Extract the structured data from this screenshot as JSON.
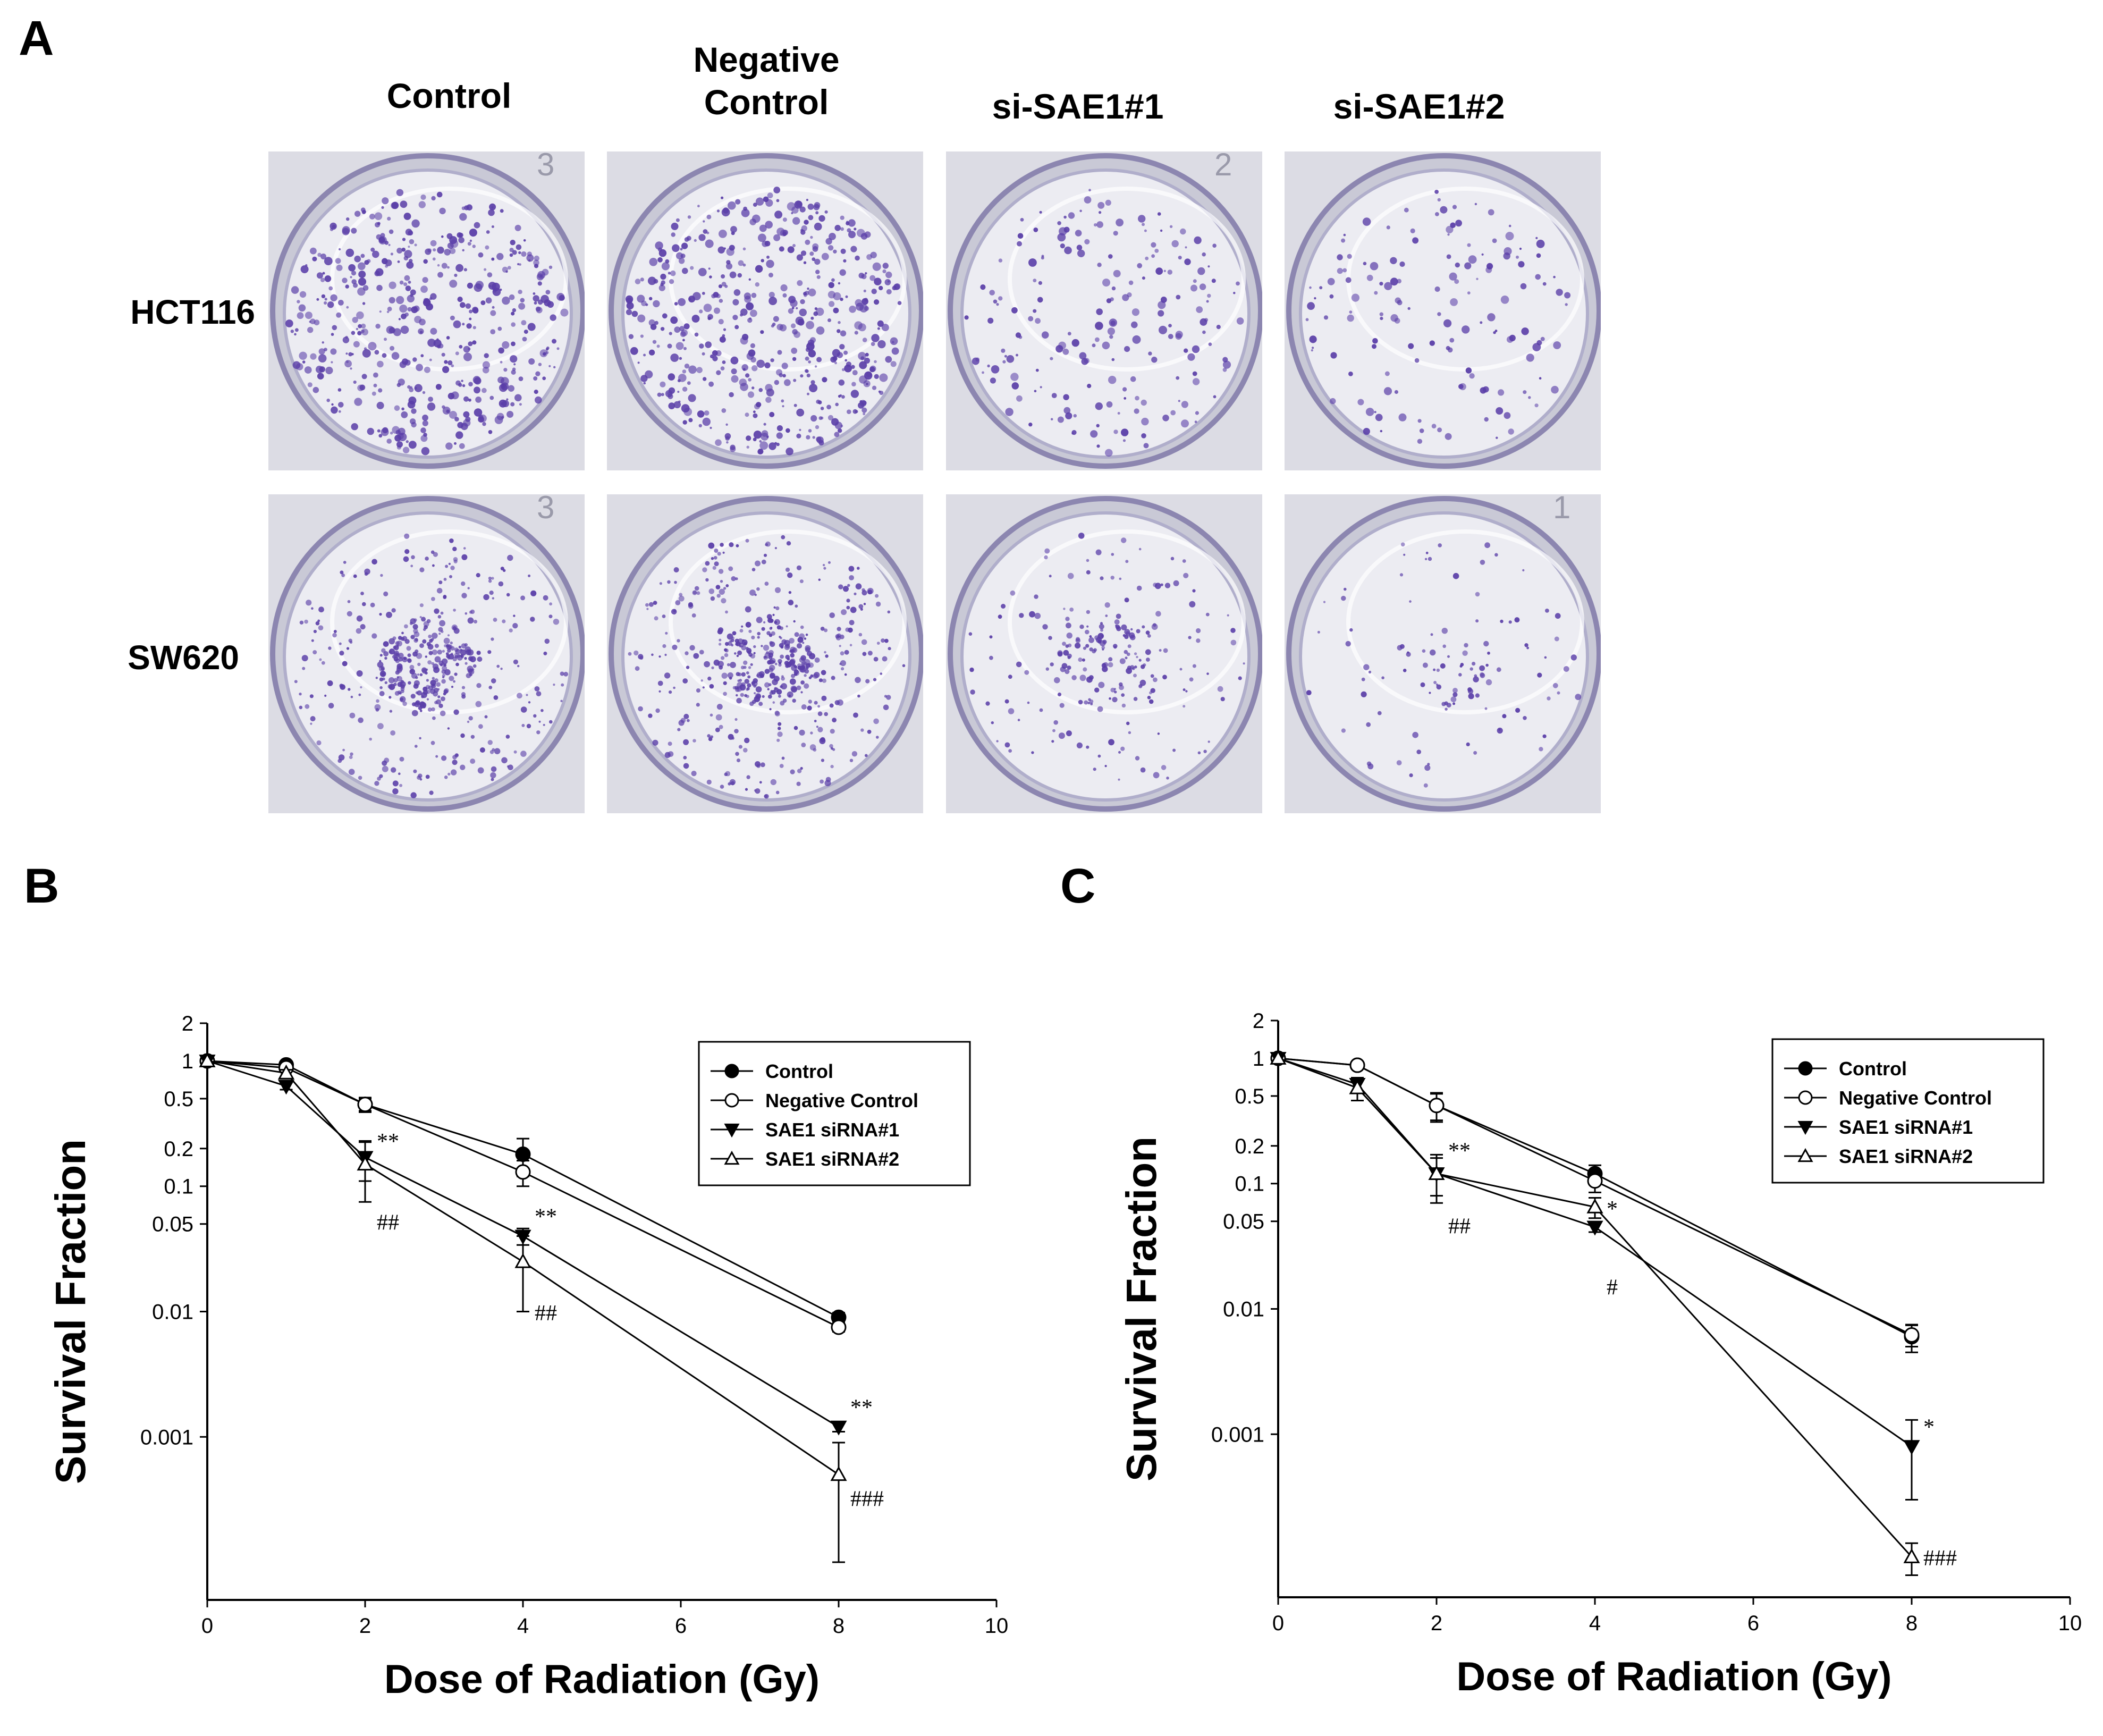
{
  "panel_labels": [
    "A",
    "B",
    "C"
  ],
  "panelA": {
    "columns": [
      "Control",
      "Negative\nControl",
      "si-SAE1#1",
      "si-SAE1#2"
    ],
    "rows": [
      "HCT116",
      "SW620"
    ],
    "dish_numbers": [
      "3",
      "",
      "2",
      "",
      "3",
      "",
      "",
      "1"
    ],
    "colony_density": [
      [
        0.95,
        1.0,
        0.38,
        0.28
      ],
      [
        0.9,
        1.0,
        0.45,
        0.22
      ]
    ]
  },
  "colors": {
    "stain": "#5a3ea8",
    "line": "#000000",
    "background": "#ffffff"
  },
  "chart_data": [
    {
      "type": "line",
      "panel": "B",
      "xlabel": "Dose of Radiation (Gy)",
      "ylabel": "Survival Fraction",
      "xlim": [
        0,
        10
      ],
      "ylim": [
        5e-05,
        2
      ],
      "yscale": "log",
      "xticks": [
        0,
        2,
        4,
        6,
        8,
        10
      ],
      "yticks": [
        2,
        1,
        0.5,
        0.2,
        0.1,
        0.05,
        0.01,
        0.001
      ],
      "ytick_labels": [
        "2",
        "1",
        "0.5",
        "0.2",
        "0.1",
        "0.05",
        "0.01",
        "0.001"
      ],
      "legend_position": "top-right",
      "series": [
        {
          "name": "Control",
          "marker": "filled-circle",
          "x": [
            0,
            1,
            2,
            4,
            8
          ],
          "y": [
            1,
            0.93,
            0.45,
            0.18,
            0.009
          ],
          "err": [
            0,
            0.04,
            0.06,
            0.06,
            0.0008
          ]
        },
        {
          "name": "Negative Control",
          "marker": "open-circle",
          "x": [
            0,
            1,
            2,
            4,
            8
          ],
          "y": [
            1,
            0.88,
            0.45,
            0.13,
            0.0075
          ],
          "err": [
            0,
            0.04,
            0.05,
            0.03,
            0.0006
          ]
        },
        {
          "name": "SAE1 siRNA#1",
          "marker": "filled-triangle-down",
          "x": [
            0,
            1,
            2,
            4,
            8
          ],
          "y": [
            1,
            0.63,
            0.17,
            0.04,
            0.0012
          ],
          "err": [
            0,
            0.04,
            0.06,
            0.006,
            0.0001
          ]
        },
        {
          "name": "SAE1 siRNA#2",
          "marker": "open-triangle-up",
          "x": [
            0,
            1,
            2,
            4,
            8
          ],
          "y": [
            1,
            0.8,
            0.15,
            0.025,
            0.0005
          ],
          "err": [
            0,
            0.05,
            0.075,
            0.015,
            0.0004
          ]
        }
      ],
      "annotations": [
        {
          "text": "**",
          "x": 2,
          "y": 0.2
        },
        {
          "text": "##",
          "x": 2,
          "y": 0.045
        },
        {
          "text": "**",
          "x": 4,
          "y": 0.05
        },
        {
          "text": "##",
          "x": 4,
          "y": 0.0085
        },
        {
          "text": "**",
          "x": 8,
          "y": 0.0015
        },
        {
          "text": "###",
          "x": 8,
          "y": 0.00028
        }
      ]
    },
    {
      "type": "line",
      "panel": "C",
      "xlabel": "Dose of Radiation (Gy)",
      "ylabel": "Survival Fraction",
      "xlim": [
        0,
        10
      ],
      "ylim": [
        5e-05,
        2
      ],
      "yscale": "log",
      "xticks": [
        0,
        2,
        4,
        6,
        8,
        10
      ],
      "yticks": [
        2,
        1,
        0.5,
        0.2,
        0.1,
        0.05,
        0.01,
        0.001
      ],
      "ytick_labels": [
        "2",
        "1",
        "0.5",
        "0.2",
        "0.1",
        "0.05",
        "0.01",
        "0.001"
      ],
      "legend_position": "top-right",
      "series": [
        {
          "name": "Control",
          "marker": "filled-circle",
          "x": [
            0,
            1,
            2,
            4,
            8
          ],
          "y": [
            1,
            0.88,
            0.42,
            0.12,
            0.006
          ],
          "err": [
            0,
            0.04,
            0.1,
            0.02,
            0.0015
          ]
        },
        {
          "name": "Negative Control",
          "marker": "open-circle",
          "x": [
            0,
            1,
            2,
            4,
            8
          ],
          "y": [
            1,
            0.88,
            0.42,
            0.105,
            0.0062
          ],
          "err": [
            0,
            0.04,
            0.11,
            0.02,
            0.0012
          ]
        },
        {
          "name": "SAE1 siRNA#1",
          "marker": "filled-triangle-down",
          "x": [
            0,
            1,
            2,
            4,
            8
          ],
          "y": [
            1,
            0.62,
            0.12,
            0.045,
            0.0008
          ],
          "err": [
            0,
            0.08,
            0.05,
            0.004,
            0.0005
          ]
        },
        {
          "name": "SAE1 siRNA#2",
          "marker": "open-triangle-up",
          "x": [
            0,
            1,
            2,
            4,
            8
          ],
          "y": [
            1,
            0.58,
            0.12,
            0.065,
            0.000105
          ],
          "err": [
            0,
            0.12,
            0.04,
            0.012,
            3e-05
          ]
        }
      ],
      "annotations": [
        {
          "text": "**",
          "x": 2,
          "y": 0.16
        },
        {
          "text": "##",
          "x": 2,
          "y": 0.04
        },
        {
          "text": "*",
          "x": 4,
          "y": 0.055
        },
        {
          "text": "#",
          "x": 4,
          "y": 0.013
        },
        {
          "text": "*",
          "x": 8,
          "y": 0.001
        },
        {
          "text": "###",
          "x": 8,
          "y": 9e-05
        }
      ]
    }
  ]
}
